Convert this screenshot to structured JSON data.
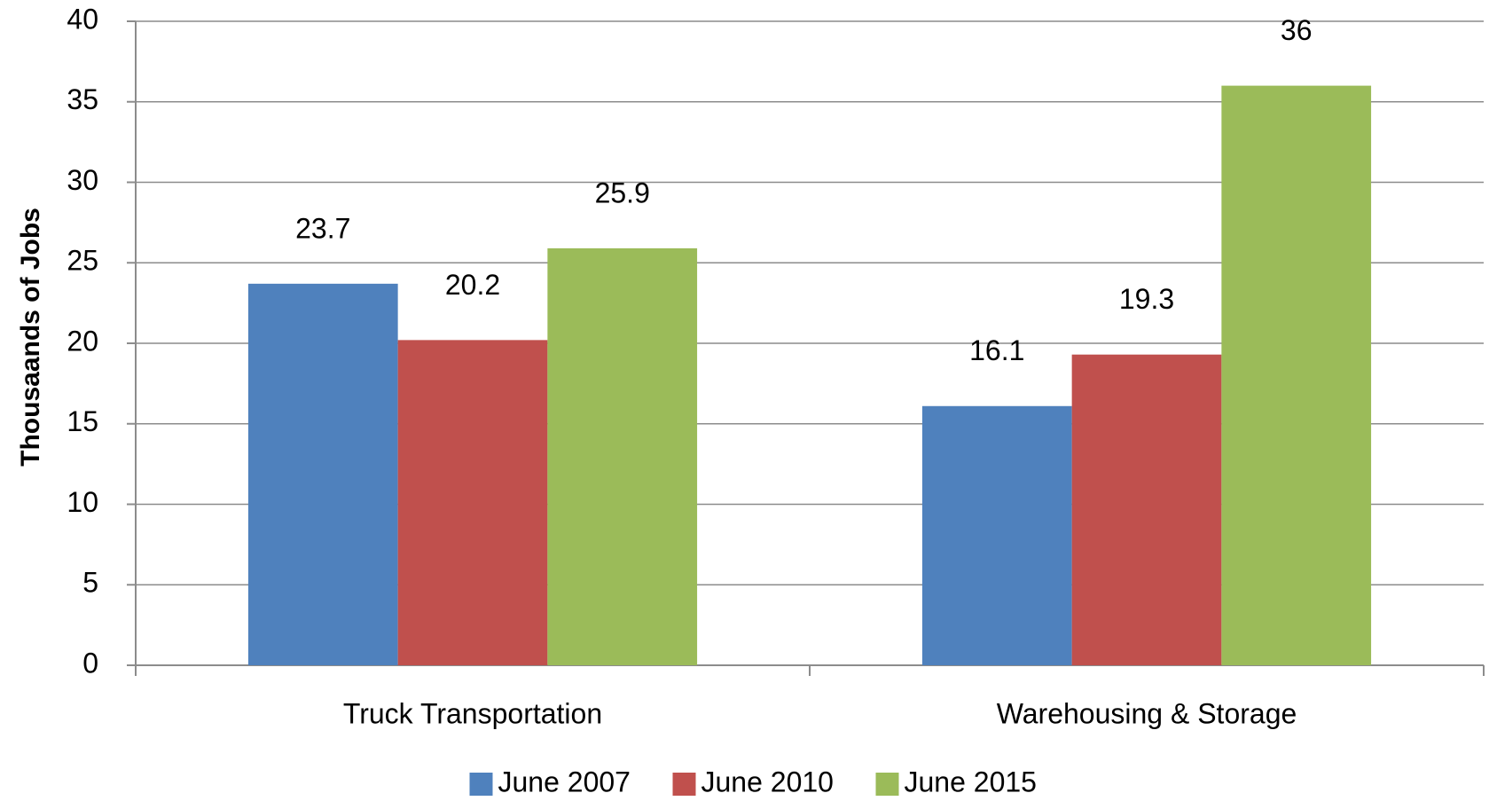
{
  "chart_data": {
    "type": "bar",
    "y_label": "Thousaands of Jobs",
    "categories": [
      "Truck Transportation",
      "Warehousing & Storage"
    ],
    "series": [
      {
        "name": "June 2007",
        "color": "#4f81bd",
        "values": [
          23.7,
          16.1
        ]
      },
      {
        "name": "June 2010",
        "color": "#c0504d",
        "values": [
          20.2,
          19.3
        ]
      },
      {
        "name": "June 2015",
        "color": "#9bbb59",
        "values": [
          25.9,
          36
        ]
      }
    ],
    "ylim": [
      0,
      40
    ],
    "yticks": [
      0,
      5,
      10,
      15,
      20,
      25,
      30,
      35,
      40
    ],
    "grid": true,
    "legend": "bottom"
  }
}
